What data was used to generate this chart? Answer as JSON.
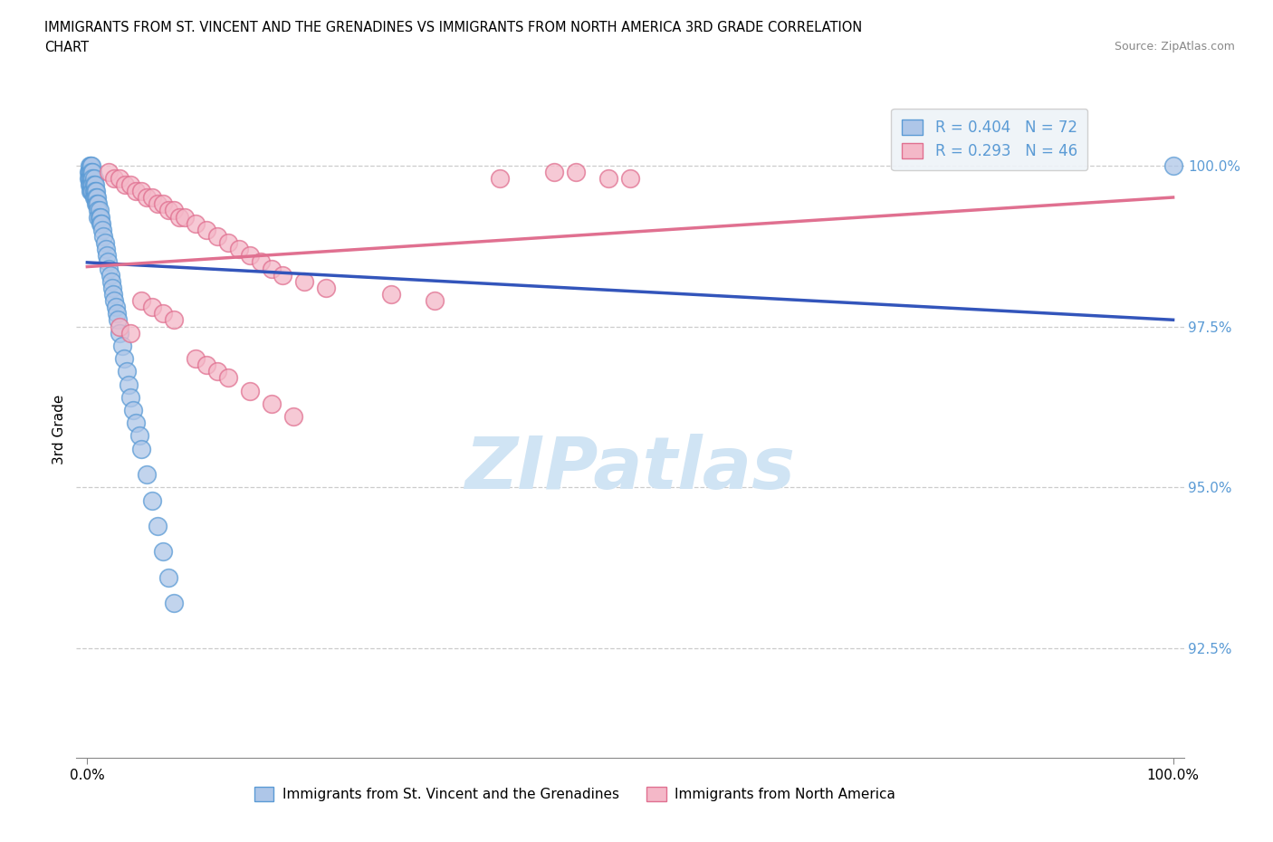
{
  "title_line1": "IMMIGRANTS FROM ST. VINCENT AND THE GRENADINES VS IMMIGRANTS FROM NORTH AMERICA 3RD GRADE CORRELATION",
  "title_line2": "CHART",
  "source_text": "Source: ZipAtlas.com",
  "ylabel": "3rd Grade",
  "y_tick_labels": [
    "92.5%",
    "95.0%",
    "97.5%",
    "100.0%"
  ],
  "y_tick_values": [
    0.925,
    0.95,
    0.975,
    1.0
  ],
  "blue_label": "Immigrants from St. Vincent and the Grenadines",
  "pink_label": "Immigrants from North America",
  "R_blue": 0.404,
  "N_blue": 72,
  "R_pink": 0.293,
  "N_pink": 46,
  "blue_fill": "#aec6e8",
  "blue_edge": "#5b9bd5",
  "pink_fill": "#f4b8c8",
  "pink_edge": "#e07090",
  "blue_line_color": "#3355bb",
  "pink_line_color": "#e07090",
  "watermark_color": "#d0e4f4",
  "legend_bg": "#eef3f8",
  "legend_edge": "#cccccc",
  "ytick_color": "#5b9bd5",
  "grid_color": "#cccccc",
  "blue_x": [
    0.001,
    0.001,
    0.002,
    0.002,
    0.002,
    0.002,
    0.003,
    0.003,
    0.003,
    0.003,
    0.003,
    0.004,
    0.004,
    0.004,
    0.004,
    0.004,
    0.005,
    0.005,
    0.005,
    0.005,
    0.006,
    0.006,
    0.006,
    0.006,
    0.007,
    0.007,
    0.007,
    0.008,
    0.008,
    0.008,
    0.009,
    0.009,
    0.01,
    0.01,
    0.01,
    0.011,
    0.011,
    0.012,
    0.012,
    0.013,
    0.014,
    0.015,
    0.016,
    0.017,
    0.018,
    0.019,
    0.02,
    0.021,
    0.022,
    0.023,
    0.024,
    0.025,
    0.026,
    0.027,
    0.028,
    0.03,
    0.032,
    0.034,
    0.036,
    0.038,
    0.04,
    0.042,
    0.045,
    0.048,
    0.05,
    0.055,
    0.06,
    0.065,
    0.07,
    0.075,
    0.08,
    1.0
  ],
  "blue_y": [
    0.999,
    0.998,
    1.0,
    0.999,
    0.998,
    0.997,
    1.0,
    0.999,
    0.998,
    0.997,
    0.996,
    1.0,
    0.999,
    0.998,
    0.997,
    0.996,
    0.999,
    0.998,
    0.997,
    0.996,
    0.998,
    0.997,
    0.996,
    0.995,
    0.997,
    0.996,
    0.995,
    0.996,
    0.995,
    0.994,
    0.995,
    0.994,
    0.994,
    0.993,
    0.992,
    0.993,
    0.992,
    0.992,
    0.991,
    0.991,
    0.99,
    0.989,
    0.988,
    0.987,
    0.986,
    0.985,
    0.984,
    0.983,
    0.982,
    0.981,
    0.98,
    0.979,
    0.978,
    0.977,
    0.976,
    0.974,
    0.972,
    0.97,
    0.968,
    0.966,
    0.964,
    0.962,
    0.96,
    0.958,
    0.956,
    0.952,
    0.948,
    0.944,
    0.94,
    0.936,
    0.932,
    1.0
  ],
  "pink_x": [
    0.02,
    0.025,
    0.03,
    0.035,
    0.04,
    0.045,
    0.05,
    0.055,
    0.06,
    0.065,
    0.07,
    0.075,
    0.08,
    0.085,
    0.09,
    0.1,
    0.11,
    0.12,
    0.13,
    0.14,
    0.15,
    0.16,
    0.17,
    0.18,
    0.05,
    0.06,
    0.07,
    0.08,
    0.03,
    0.04,
    0.2,
    0.22,
    0.28,
    0.32,
    0.38,
    0.43,
    0.45,
    0.48,
    0.5,
    0.1,
    0.11,
    0.12,
    0.13,
    0.15,
    0.17,
    0.19
  ],
  "pink_y": [
    0.999,
    0.998,
    0.998,
    0.997,
    0.997,
    0.996,
    0.996,
    0.995,
    0.995,
    0.994,
    0.994,
    0.993,
    0.993,
    0.992,
    0.992,
    0.991,
    0.99,
    0.989,
    0.988,
    0.987,
    0.986,
    0.985,
    0.984,
    0.983,
    0.979,
    0.978,
    0.977,
    0.976,
    0.975,
    0.974,
    0.982,
    0.981,
    0.98,
    0.979,
    0.998,
    0.999,
    0.999,
    0.998,
    0.998,
    0.97,
    0.969,
    0.968,
    0.967,
    0.965,
    0.963,
    0.961
  ]
}
